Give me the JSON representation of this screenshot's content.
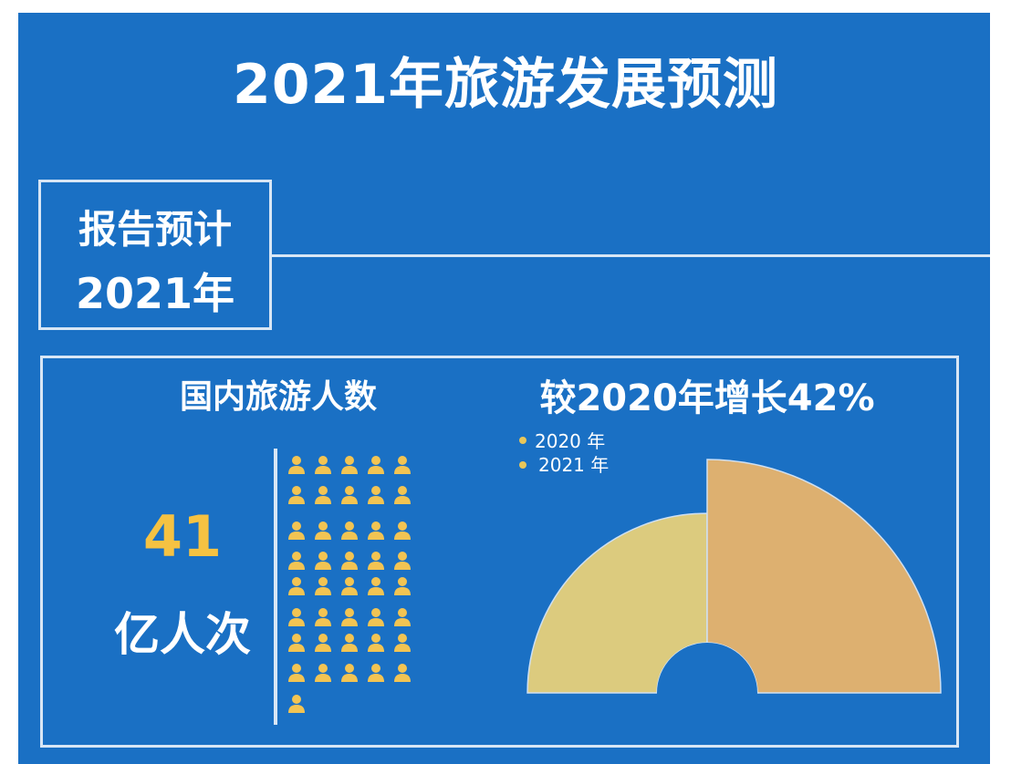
{
  "title": "2021年旅游发展预测",
  "report": {
    "line1": "报告预计",
    "line2": "2021年"
  },
  "domestic": {
    "label": "国内旅游人数",
    "value": "41",
    "unit": "亿人次",
    "icon_count": 41,
    "icon": "person-icon"
  },
  "growth_label": "较2020年增长42%",
  "colors": {
    "background": "#1a70c4",
    "accent": "#f5c242",
    "series_2020": "#dccb7e",
    "series_2021": "#ddb070"
  },
  "chart_data": {
    "type": "pie",
    "subtype": "half-rose",
    "title": "较2020年增长42%",
    "categories": [
      "2020 年",
      "2021 年"
    ],
    "values": [
      28.9,
      41
    ],
    "unit": "亿人次",
    "legend": {
      "entries": [
        "2020 年",
        "2021 年"
      ],
      "placement": "top-left"
    }
  }
}
